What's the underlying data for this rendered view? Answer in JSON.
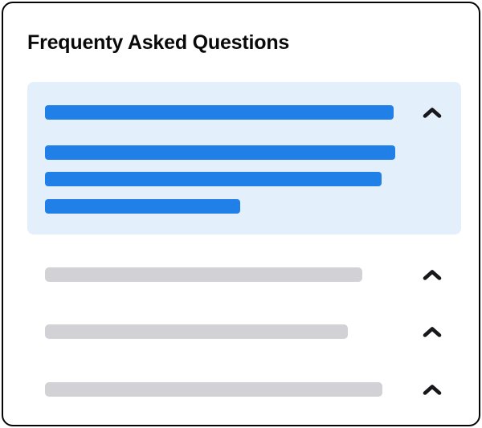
{
  "header": {
    "title": "Frequenty Asked Questions"
  },
  "colors": {
    "accent_blue": "#2080E8",
    "accent_blue_light": "#E4EFFC",
    "skeleton_gray": "#D1D1D6",
    "chevron": "#17171C",
    "title_text": "#0A0A0A",
    "card_border": "#050505",
    "card_bg": "#FFFFFF"
  },
  "faq": {
    "items": [
      {
        "id": 1,
        "state": "expanded",
        "icon": "chevron-up-icon",
        "question_bar_width": 434,
        "answer_bar_widths": [
          436,
          419,
          243
        ]
      },
      {
        "id": 2,
        "state": "collapsed",
        "icon": "chevron-up-icon",
        "question_bar_width": 395
      },
      {
        "id": 3,
        "state": "collapsed",
        "icon": "chevron-up-icon",
        "question_bar_width": 377
      },
      {
        "id": 4,
        "state": "collapsed",
        "icon": "chevron-up-icon",
        "question_bar_width": 420
      }
    ]
  }
}
